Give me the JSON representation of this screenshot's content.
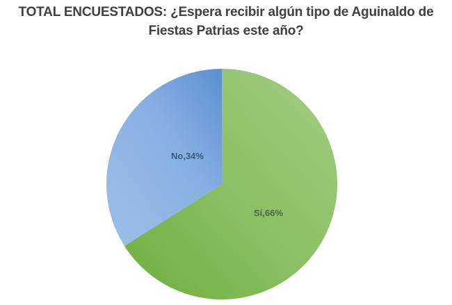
{
  "title": {
    "line1": "TOTAL ENCUESTADOS: ¿Espera recibir algún tipo de Aguinaldo de",
    "line2": "Fiestas Patrias este año?"
  },
  "chart_data": {
    "type": "pie",
    "title": "TOTAL ENCUESTADOS: ¿Espera recibir algún tipo de Aguinaldo de Fiestas Patrias este año?",
    "categories": [
      "Sí",
      "No"
    ],
    "values": [
      66,
      34
    ],
    "unit": "%",
    "data_labels": [
      "Sí,66%",
      "No,34%"
    ],
    "colors": [
      "#8dc063",
      "#6fa0d8"
    ],
    "legend": "none",
    "start_angle_deg": 0
  },
  "labels": {
    "si": "Sí,66%",
    "no": "No,34%"
  }
}
